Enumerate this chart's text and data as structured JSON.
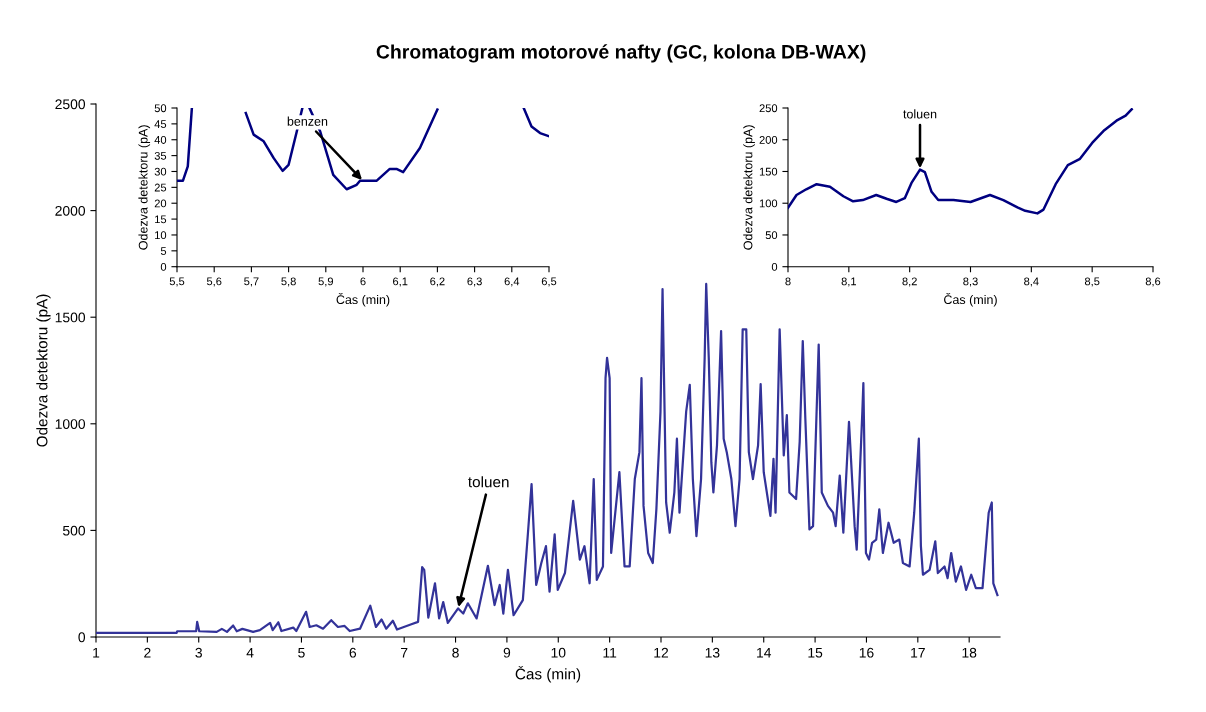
{
  "chart_data": [
    {
      "type": "line",
      "title": "Chromatogram motorové nafty (GC, kolona DB-WAX)",
      "xlabel": "Čas (min)",
      "ylabel": "Odezva detektoru (pA)",
      "xlim": [
        1,
        18.6
      ],
      "xticks": [
        1,
        2,
        3,
        4,
        5,
        6,
        7,
        8,
        9,
        10,
        11,
        12,
        13,
        14,
        15,
        16,
        17,
        18
      ],
      "ylim": [
        0,
        2500
      ],
      "yticks": [
        0,
        500,
        1000,
        1500,
        2000,
        2500
      ],
      "grid": false,
      "annotations": [
        {
          "text": "toluen",
          "x": 8.05,
          "y": 134
        }
      ],
      "series": [
        {
          "color": "#333399",
          "x": [
            1,
            2.57,
            2.58,
            2.95,
            2.97,
            3.01,
            3.35,
            3.45,
            3.55,
            3.67,
            3.74,
            3.85,
            4.06,
            4.19,
            4.39,
            4.44,
            4.55,
            4.61,
            4.84,
            4.9,
            5.09,
            5.16,
            5.29,
            5.42,
            5.58,
            5.71,
            5.84,
            5.94,
            6.14,
            6.34,
            6.45,
            6.56,
            6.65,
            6.78,
            6.86,
            7.14,
            7.27,
            7.35,
            7.39,
            7.47,
            7.6,
            7.68,
            7.76,
            7.85,
            8.05,
            8.15,
            8.24,
            8.41,
            8.63,
            8.76,
            8.86,
            8.93,
            9.02,
            9.13,
            9.31,
            9.41,
            9.48,
            9.57,
            9.67,
            9.76,
            9.83,
            9.93,
            9.99,
            10.13,
            10.29,
            10.42,
            10.51,
            10.61,
            10.69,
            10.75,
            10.87,
            10.92,
            10.95,
            11.0,
            11.03,
            11.19,
            11.29,
            11.39,
            11.49,
            11.58,
            11.62,
            11.66,
            11.75,
            11.84,
            11.91,
            11.99,
            12.03,
            12.07,
            12.1,
            12.17,
            12.26,
            12.31,
            12.36,
            12.49,
            12.56,
            12.62,
            12.69,
            12.78,
            12.85,
            12.88,
            12.93,
            12.98,
            13.02,
            13.09,
            13.17,
            13.22,
            13.28,
            13.37,
            13.45,
            13.53,
            13.59,
            13.66,
            13.71,
            13.79,
            13.89,
            13.94,
            14.0,
            14.13,
            14.19,
            14.23,
            14.31,
            14.39,
            14.45,
            14.5,
            14.63,
            14.7,
            14.76,
            14.81,
            14.89,
            14.96,
            15.07,
            15.13,
            15.25,
            15.35,
            15.4,
            15.48,
            15.55,
            15.66,
            15.77,
            15.81,
            15.92,
            15.94,
            15.99,
            16.05,
            16.11,
            16.19,
            16.25,
            16.32,
            16.43,
            16.53,
            16.64,
            16.71,
            16.84,
            16.93,
            17.02,
            17.06,
            17.1,
            17.23,
            17.34,
            17.39,
            17.52,
            17.58,
            17.65,
            17.74,
            17.84,
            17.94,
            18.04,
            18.13,
            18.26,
            18.38,
            18.44,
            18.47,
            18.55
          ],
          "values": [
            19,
            19,
            27,
            27,
            71,
            27,
            24,
            38,
            24,
            54,
            27,
            38,
            24,
            32,
            66,
            32,
            69,
            28,
            44,
            28,
            118,
            47,
            55,
            39,
            79,
            47,
            52,
            28,
            39,
            147,
            47,
            82,
            39,
            76,
            35,
            60,
            71,
            328,
            315,
            91,
            252,
            87,
            164,
            66,
            134,
            110,
            158,
            87,
            334,
            150,
            244,
            110,
            315,
            102,
            173,
            489,
            717,
            244,
            347,
            426,
            213,
            481,
            221,
            300,
            639,
            363,
            426,
            252,
            741,
            268,
            331,
            1214,
            1309,
            1214,
            394,
            773,
            331,
            331,
            741,
            867,
            1214,
            615,
            394,
            347,
            599,
            1057,
            1632,
            1057,
            631,
            489,
            678,
            930,
            583,
            1057,
            1183,
            741,
            473,
            741,
            1309,
            1656,
            1309,
            820,
            678,
            899,
            1435,
            930,
            867,
            741,
            520,
            741,
            1443,
            1443,
            867,
            741,
            899,
            1186,
            773,
            568,
            836,
            583,
            1443,
            852,
            1041,
            678,
            647,
            915,
            1388,
            1025,
            505,
            520,
            1372,
            678,
            615,
            583,
            520,
            757,
            489,
            1009,
            520,
            410,
            1057,
            1191,
            394,
            363,
            442,
            457,
            599,
            394,
            536,
            442,
            457,
            347,
            331,
            583,
            930,
            426,
            292,
            315,
            449,
            300,
            331,
            276,
            394,
            260,
            331,
            221,
            292,
            229,
            229,
            583,
            631,
            252,
            197
          ]
        }
      ]
    },
    {
      "type": "line",
      "xlabel": "Čas (min)",
      "ylabel": "Odezva detektoru (pA)",
      "xlim": [
        5.5,
        6.5
      ],
      "xticks": [
        {
          "value": 5.5,
          "label": "5,5"
        },
        {
          "value": 5.6,
          "label": "5,6"
        },
        {
          "value": 5.7,
          "label": "5,7"
        },
        {
          "value": 5.8,
          "label": "5,8"
        },
        {
          "value": 5.9,
          "label": "5,9"
        },
        6,
        {
          "value": 6.1,
          "label": "6,1"
        },
        {
          "value": 6.2,
          "label": "6,2"
        },
        {
          "value": 6.3,
          "label": "6,3"
        },
        {
          "value": 6.4,
          "label": "6,4"
        },
        {
          "value": 6.5,
          "label": "6,5"
        }
      ],
      "ylim": [
        0,
        50
      ],
      "yticks": [
        0,
        5,
        10,
        15,
        20,
        25,
        30,
        35,
        40,
        45,
        50
      ],
      "grid": false,
      "annotations": [
        {
          "text": "benzen",
          "x": 6.0,
          "y": 27
        }
      ],
      "series": [
        {
          "color": "#000080",
          "x": [
            5.5,
            5.516,
            5.529,
            5.54,
            5.6,
            5.685,
            5.706,
            5.733,
            5.76,
            5.784,
            5.8,
            5.822,
            5.837,
            5.846,
            5.856,
            5.885,
            5.92,
            5.956,
            5.983,
            5.992,
            6.037,
            6.072,
            6.09,
            6.108,
            6.153,
            6.2,
            6.3,
            6.432,
            6.453,
            6.476,
            6.5
          ],
          "values": [
            27.1,
            27.1,
            31.6,
            50,
            null,
            48.4,
            41.6,
            39.5,
            34.2,
            30.2,
            32.1,
            42.6,
            50,
            null,
            50,
            42.6,
            28.9,
            24.4,
            25.8,
            27.1,
            27.1,
            30.8,
            30.8,
            29.8,
            37.4,
            49.5,
            null,
            50,
            44.2,
            42.1,
            41.1
          ]
        }
      ]
    },
    {
      "type": "line",
      "xlabel": "Čas (min)",
      "ylabel": "Odezva detektoru (pA)",
      "xlim": [
        8,
        8.6
      ],
      "xticks": [
        8,
        {
          "value": 8.1,
          "label": "8,1"
        },
        {
          "value": 8.2,
          "label": "8,2"
        },
        {
          "value": 8.3,
          "label": "8,3"
        },
        {
          "value": 8.4,
          "label": "8,4"
        },
        {
          "value": 8.5,
          "label": "8,5"
        },
        {
          "value": 8.6,
          "label": "8,6"
        }
      ],
      "ylim": [
        0,
        250
      ],
      "yticks": [
        0,
        50,
        100,
        150,
        200,
        250
      ],
      "grid": false,
      "annotations": [
        {
          "text": "toluen",
          "x": 8.217,
          "y": 153
        }
      ],
      "series": [
        {
          "color": "#000080",
          "x": [
            8.0,
            8.014,
            8.03,
            8.047,
            8.069,
            8.091,
            8.107,
            8.123,
            8.145,
            8.162,
            8.178,
            8.192,
            8.203,
            8.217,
            8.225,
            8.236,
            8.247,
            8.272,
            8.3,
            8.332,
            8.354,
            8.378,
            8.39,
            8.41,
            8.42,
            8.44,
            8.46,
            8.48,
            8.5,
            8.52,
            8.54,
            8.555,
            8.565
          ],
          "values": [
            93,
            113,
            122,
            130,
            126,
            111,
            103,
            105,
            113,
            107,
            102,
            108,
            132,
            153,
            149,
            118,
            105,
            105,
            102,
            113,
            105,
            93,
            88,
            84,
            90,
            130,
            160,
            170,
            195,
            215,
            230,
            238,
            248
          ]
        }
      ]
    }
  ]
}
